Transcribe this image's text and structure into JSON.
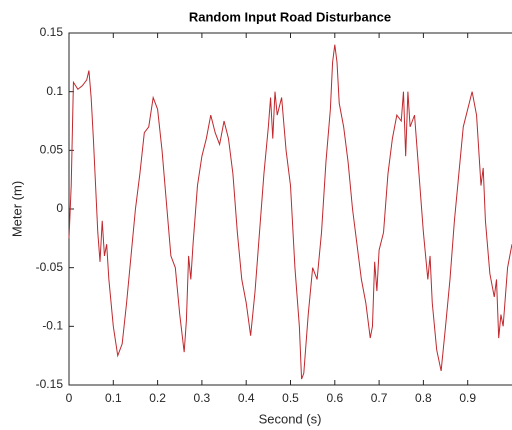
{
  "chart_data": {
    "type": "line",
    "title": "Random Input Road Disturbance",
    "x_label": "Second (s)",
    "y_label": "Meter (m)",
    "xlim": [
      0,
      1
    ],
    "ylim": [
      -0.15,
      0.15
    ],
    "xticks": [
      0,
      0.1,
      0.2,
      0.3,
      0.4,
      0.5,
      0.6,
      0.7,
      0.8,
      0.9
    ],
    "yticks": [
      -0.15,
      -0.1,
      -0.05,
      0,
      0.05,
      0.1,
      0.15
    ],
    "series": [
      {
        "color": "#c0282d",
        "x": [
          0,
          0.005,
          0.01,
          0.02,
          0.03,
          0.04,
          0.045,
          0.05,
          0.055,
          0.06,
          0.065,
          0.07,
          0.075,
          0.08,
          0.085,
          0.09,
          0.1,
          0.11,
          0.12,
          0.13,
          0.14,
          0.15,
          0.16,
          0.17,
          0.18,
          0.19,
          0.2,
          0.21,
          0.22,
          0.23,
          0.24,
          0.25,
          0.26,
          0.265,
          0.27,
          0.275,
          0.28,
          0.29,
          0.3,
          0.31,
          0.32,
          0.33,
          0.34,
          0.35,
          0.36,
          0.37,
          0.38,
          0.39,
          0.4,
          0.41,
          0.42,
          0.43,
          0.44,
          0.45,
          0.455,
          0.46,
          0.465,
          0.47,
          0.48,
          0.49,
          0.5,
          0.51,
          0.52,
          0.525,
          0.53,
          0.54,
          0.55,
          0.56,
          0.57,
          0.58,
          0.59,
          0.595,
          0.6,
          0.605,
          0.61,
          0.62,
          0.63,
          0.64,
          0.65,
          0.66,
          0.67,
          0.68,
          0.685,
          0.69,
          0.695,
          0.7,
          0.71,
          0.72,
          0.73,
          0.74,
          0.75,
          0.755,
          0.76,
          0.765,
          0.77,
          0.78,
          0.79,
          0.8,
          0.81,
          0.815,
          0.82,
          0.83,
          0.84,
          0.85,
          0.86,
          0.87,
          0.88,
          0.89,
          0.9,
          0.91,
          0.92,
          0.93,
          0.935,
          0.94,
          0.95,
          0.96,
          0.965,
          0.97,
          0.975,
          0.98,
          0.99,
          1.0
        ],
        "values": [
          -0.025,
          0.02,
          0.108,
          0.102,
          0.105,
          0.11,
          0.118,
          0.095,
          0.06,
          0.02,
          -0.02,
          -0.045,
          -0.01,
          -0.04,
          -0.03,
          -0.06,
          -0.1,
          -0.125,
          -0.115,
          -0.08,
          -0.04,
          0.0,
          0.03,
          0.065,
          0.07,
          0.095,
          0.085,
          0.05,
          0.005,
          -0.04,
          -0.05,
          -0.09,
          -0.122,
          -0.095,
          -0.04,
          -0.06,
          -0.03,
          0.02,
          0.045,
          0.06,
          0.08,
          0.065,
          0.055,
          0.075,
          0.06,
          0.03,
          -0.02,
          -0.06,
          -0.08,
          -0.108,
          -0.07,
          -0.02,
          0.03,
          0.07,
          0.095,
          0.06,
          0.1,
          0.08,
          0.095,
          0.05,
          0.02,
          -0.05,
          -0.1,
          -0.145,
          -0.14,
          -0.09,
          -0.05,
          -0.06,
          -0.02,
          0.04,
          0.085,
          0.125,
          0.14,
          0.125,
          0.09,
          0.07,
          0.04,
          0.0,
          -0.03,
          -0.06,
          -0.08,
          -0.11,
          -0.1,
          -0.045,
          -0.07,
          -0.035,
          -0.02,
          0.03,
          0.06,
          0.08,
          0.075,
          0.1,
          0.045,
          0.1,
          0.07,
          0.08,
          0.03,
          -0.02,
          -0.06,
          -0.04,
          -0.08,
          -0.12,
          -0.138,
          -0.1,
          -0.06,
          -0.01,
          0.03,
          0.07,
          0.085,
          0.1,
          0.08,
          0.02,
          0.035,
          -0.01,
          -0.055,
          -0.075,
          -0.06,
          -0.11,
          -0.09,
          -0.1,
          -0.05,
          -0.03
        ]
      }
    ]
  }
}
